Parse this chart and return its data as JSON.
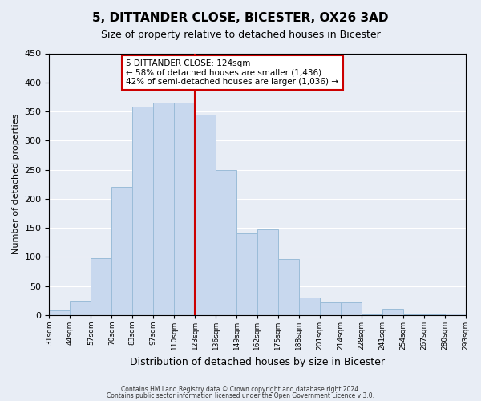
{
  "title": "5, DITTANDER CLOSE, BICESTER, OX26 3AD",
  "subtitle": "Size of property relative to detached houses in Bicester",
  "xlabel": "Distribution of detached houses by size in Bicester",
  "ylabel": "Number of detached properties",
  "bin_labels": [
    "31sqm",
    "44sqm",
    "57sqm",
    "70sqm",
    "83sqm",
    "97sqm",
    "110sqm",
    "123sqm",
    "136sqm",
    "149sqm",
    "162sqm",
    "175sqm",
    "188sqm",
    "201sqm",
    "214sqm",
    "228sqm",
    "241sqm",
    "254sqm",
    "267sqm",
    "280sqm",
    "293sqm"
  ],
  "bar_values": [
    8,
    25,
    98,
    220,
    358,
    365,
    365,
    345,
    250,
    140,
    148,
    97,
    30,
    22,
    22,
    1,
    11,
    1,
    1,
    3
  ],
  "bar_color": "#c8d8ee",
  "bar_edge_color": "#9bbcd8",
  "ylim": [
    0,
    450
  ],
  "yticks": [
    0,
    50,
    100,
    150,
    200,
    250,
    300,
    350,
    400,
    450
  ],
  "property_line_color": "#cc0000",
  "annotation_title": "5 DITTANDER CLOSE: 124sqm",
  "annotation_line1": "← 58% of detached houses are smaller (1,436)",
  "annotation_line2": "42% of semi-detached houses are larger (1,036) →",
  "annotation_box_facecolor": "#ffffff",
  "annotation_box_edgecolor": "#cc0000",
  "footer_line1": "Contains HM Land Registry data © Crown copyright and database right 2024.",
  "footer_line2": "Contains public sector information licensed under the Open Government Licence v 3.0.",
  "background_color": "#e8edf5",
  "plot_bg_color": "#e8edf5",
  "grid_color": "#ffffff",
  "title_fontsize": 11,
  "subtitle_fontsize": 9,
  "ylabel_fontsize": 8,
  "xlabel_fontsize": 9
}
